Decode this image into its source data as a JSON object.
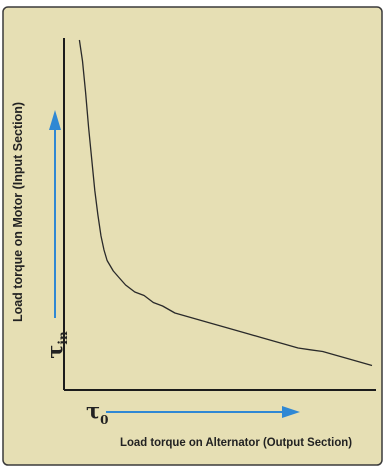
{
  "chart_data": {
    "type": "line",
    "xlabel": "Load torque on Alternator (Output Section)",
    "ylabel": "Load torque on Motor (Input Section)",
    "x_symbol": "τ",
    "x_symbol_sub": "0",
    "y_symbol": "τ",
    "y_symbol_sub": "in",
    "xlim": [
      0,
      100
    ],
    "ylim": [
      0,
      100
    ],
    "grid": false,
    "legend": "none",
    "series": [
      {
        "values_x": [
          5,
          6,
          7,
          8,
          9,
          10,
          11,
          12,
          13,
          14,
          16,
          18,
          20,
          23,
          26,
          29,
          32,
          36,
          40,
          44,
          48,
          52,
          56,
          60,
          64,
          68,
          72,
          76,
          80,
          84,
          88,
          92,
          96,
          100
        ],
        "values_y": [
          100,
          94,
          85,
          75,
          66,
          57,
          50,
          44,
          40,
          37,
          34,
          32,
          30,
          28,
          27,
          25,
          24,
          22,
          21,
          20,
          19,
          18,
          17,
          16,
          15,
          14,
          13,
          12,
          11.5,
          11,
          10,
          9,
          8,
          7
        ]
      }
    ],
    "colors": {
      "frame": "#e6dfb4",
      "frame_border": "#3a3a3a",
      "curve": "#2a2a2a",
      "axis": "#1c1c1c",
      "arrow": "#2f88d4",
      "text": "#222222"
    }
  }
}
